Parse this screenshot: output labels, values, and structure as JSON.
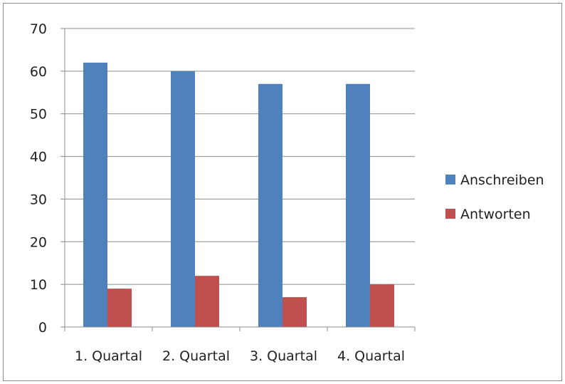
{
  "chart_data": {
    "type": "bar",
    "categories": [
      "1. Quartal",
      "2. Quartal",
      "3. Quartal",
      "4. Quartal"
    ],
    "series": [
      {
        "name": "Anschreiben",
        "values": [
          62,
          60,
          57,
          57
        ],
        "color": "#4f81bd"
      },
      {
        "name": "Antworten",
        "values": [
          9,
          12,
          7,
          10
        ],
        "color": "#c0504d"
      }
    ],
    "ylim": [
      0,
      70
    ],
    "yticks": [
      0,
      10,
      20,
      30,
      40,
      50,
      60,
      70
    ],
    "grid": true,
    "legend": "right",
    "title": "",
    "xlabel": "",
    "ylabel": ""
  }
}
